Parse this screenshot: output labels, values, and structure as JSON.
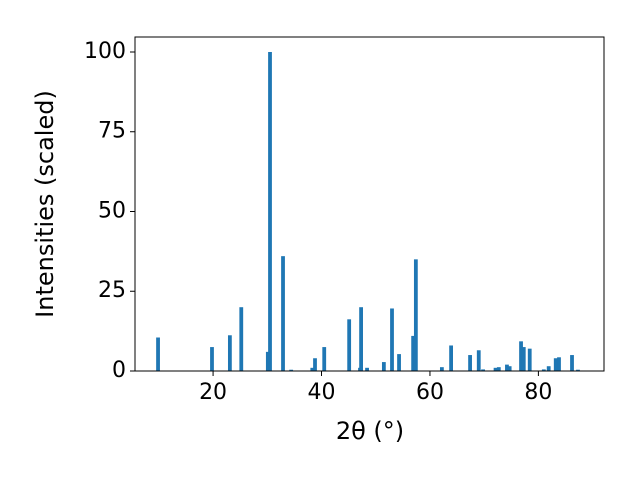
{
  "chart_data": {
    "type": "bar",
    "x_label": "2θ (°)",
    "y_label": "Intensities (scaled)",
    "x": [
      9.85,
      19.8,
      23.1,
      25.2,
      30.1,
      30.5,
      32.9,
      34.4,
      38.3,
      38.8,
      40.5,
      45.1,
      47.1,
      47.3,
      48.4,
      51.5,
      53.0,
      54.3,
      56.9,
      57.4,
      62.2,
      63.9,
      67.4,
      69.0,
      69.8,
      72.1,
      72.7,
      74.2,
      74.7,
      76.8,
      77.3,
      78.4,
      81.0,
      81.9,
      83.2,
      83.8,
      86.2,
      87.3
    ],
    "values": [
      10.5,
      7.5,
      11.2,
      20,
      6,
      100,
      36,
      0.4,
      1,
      4,
      7.5,
      16.2,
      1,
      20,
      1,
      2.8,
      19.6,
      5.3,
      11,
      35,
      1.2,
      8,
      5,
      6.5,
      0.5,
      1,
      1.2,
      2,
      1.5,
      9.3,
      7.5,
      7,
      0.5,
      1.5,
      4,
      4.3,
      5,
      0.4
    ],
    "color": "#1f77b4",
    "xlim": [
      5.6,
      92.1
    ],
    "xticks": [
      20,
      40,
      60,
      80
    ],
    "ylim": [
      0,
      104.7
    ],
    "yticks": [
      0,
      25,
      50,
      75,
      100
    ],
    "grid": false
  }
}
